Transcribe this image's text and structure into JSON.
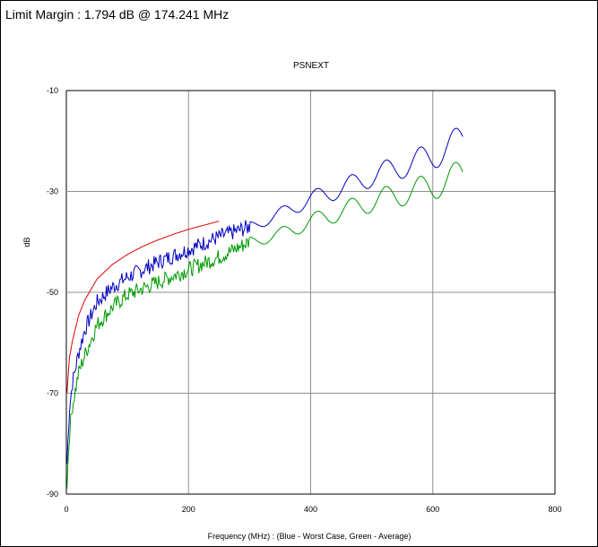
{
  "header": {
    "limit_margin": "Limit Margin : 1.794 dB @ 174.241 MHz"
  },
  "colors": {
    "worst_case": "#0000c0",
    "average": "#009900",
    "limit": "#e00000",
    "grid": "#909090"
  },
  "chart_data": {
    "type": "line",
    "title": "PSNEXT",
    "xlabel": "Frequency (MHz) : (Blue - Worst Case, Green - Average)",
    "ylabel": "dB",
    "xlim": [
      0,
      800
    ],
    "ylim": [
      -90,
      -10
    ],
    "x_ticks": [
      "0",
      "200",
      "400",
      "600",
      "800"
    ],
    "y_ticks": [
      "-10",
      "-30",
      "-50",
      "-70",
      "-90"
    ],
    "grid": true,
    "series": [
      {
        "color": "#e00000",
        "x": [
          1,
          5,
          10,
          20,
          30,
          50,
          75,
          100,
          125,
          150,
          175,
          200,
          225,
          250
        ],
        "y": [
          -70,
          -63,
          -59.6,
          -54.6,
          -51.6,
          -47.4,
          -44.5,
          -42.5,
          -40.9,
          -39.6,
          -38.5,
          -37.5,
          -36.7,
          -35.9
        ]
      },
      {
        "color": "#0000c0",
        "x": [
          1,
          5,
          10,
          20,
          30,
          50,
          75,
          100,
          150,
          200,
          250,
          300,
          350,
          400,
          450,
          500,
          550,
          600,
          650
        ],
        "y": [
          -84,
          -73,
          -68,
          -62,
          -57.5,
          -52,
          -49,
          -47,
          -44,
          -41.5,
          -39,
          -37,
          -34.5,
          -31.5,
          -29.5,
          -27,
          -25,
          -23,
          -19.5
        ]
      },
      {
        "color": "#009900",
        "x": [
          1,
          5,
          10,
          20,
          30,
          50,
          75,
          100,
          150,
          200,
          250,
          300,
          350,
          400,
          450,
          500,
          550,
          600,
          650
        ],
        "y": [
          -88,
          -78,
          -72.5,
          -66,
          -62.5,
          -56.5,
          -53,
          -50.5,
          -48,
          -45.5,
          -43,
          -40,
          -38.5,
          -36,
          -34,
          -32,
          -30.5,
          -29,
          -26.5
        ]
      }
    ]
  }
}
